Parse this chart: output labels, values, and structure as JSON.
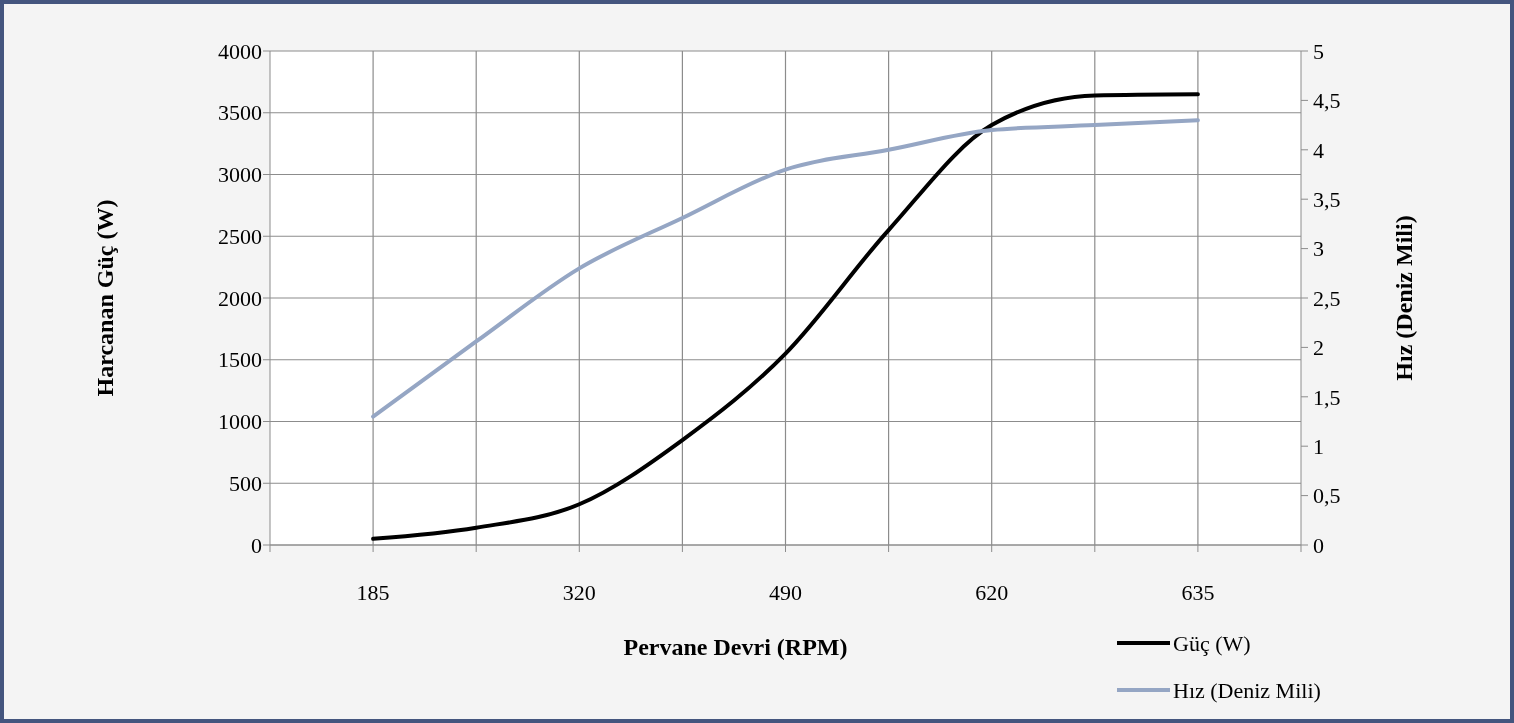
{
  "chart_data": {
    "type": "line",
    "xlabel": "Pervane Devri (RPM)",
    "ylabel": "Harcanan Güç (W)",
    "y2label": "Hız (Deniz Mili)",
    "categories": [
      null,
      "185",
      null,
      "320",
      null,
      "490",
      null,
      "620",
      null,
      "635",
      null
    ],
    "series": [
      {
        "name": "Güç (W)",
        "color": "#000000",
        "values": [
          null,
          50,
          140,
          330,
          850,
          1550,
          2550,
          3400,
          3640,
          3650,
          null
        ]
      },
      {
        "name": "Hız (Deniz Mili)",
        "color": "#95a6c4",
        "axis": "y2",
        "values": [
          null,
          1.3,
          2.06,
          2.8,
          3.31,
          3.8,
          4.0,
          4.2,
          4.25,
          4.3,
          null
        ]
      }
    ],
    "ylim": [
      0,
      4000
    ],
    "yticks": [
      0,
      500,
      1000,
      1500,
      2000,
      2500,
      3000,
      3500,
      4000
    ],
    "y2lim": [
      0,
      5
    ],
    "y2ticks": [
      0,
      {
        "value": 0.5,
        "label": "0,5"
      },
      1,
      {
        "value": 1.5,
        "label": "1,5"
      },
      2,
      {
        "value": 2.5,
        "label": "2,5"
      },
      3,
      {
        "value": 3.5,
        "label": "3,5"
      },
      4,
      {
        "value": 4.5,
        "label": "4,5"
      },
      5
    ],
    "grid": true,
    "legend": "bottom right",
    "line_style": "solid"
  }
}
